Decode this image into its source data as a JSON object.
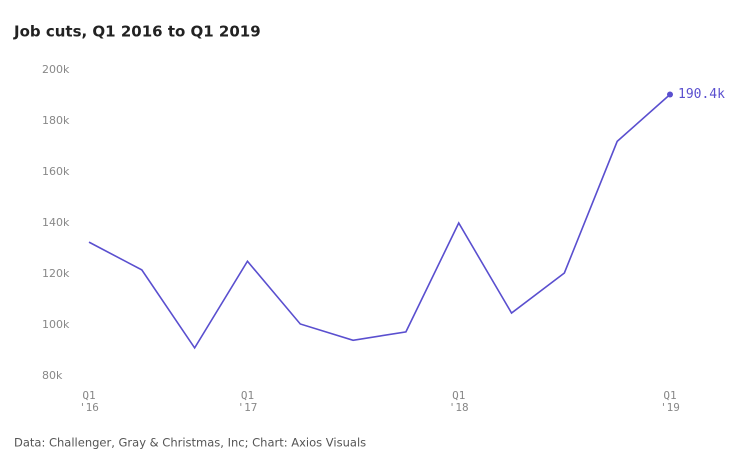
{
  "chart_data": {
    "type": "line",
    "title": "Job cuts, Q1 2016 to Q1 2019",
    "source": "Data: Challenger, Gray & Christmas, Inc; Chart: Axios Visuals",
    "categories": [
      "Q1\n'16",
      null,
      null,
      "Q1\n'17",
      null,
      null,
      null,
      "Q1\n'18",
      null,
      null,
      null,
      "Q1\n'19"
    ],
    "series": [
      {
        "name": "Job cuts",
        "color": "#5a4fcf",
        "values": [
          132.5,
          121.6,
          91,
          125,
          100.4,
          94,
          97.3,
          140,
          104.7,
          120.4,
          172,
          190.4
        ],
        "value_labels": [
          null,
          null,
          null,
          null,
          null,
          null,
          null,
          null,
          null,
          null,
          null,
          "190.4k"
        ]
      }
    ],
    "ylim": [
      80,
      200
    ],
    "yticks": [
      {
        "value": 80,
        "label": "80k"
      },
      {
        "value": 100,
        "label": "100k"
      },
      {
        "value": 120,
        "label": "120k"
      },
      {
        "value": 140,
        "label": "140k"
      },
      {
        "value": 160,
        "label": "160k"
      },
      {
        "value": 180,
        "label": "180k"
      },
      {
        "value": 200,
        "label": "200k"
      }
    ],
    "grid": false
  }
}
